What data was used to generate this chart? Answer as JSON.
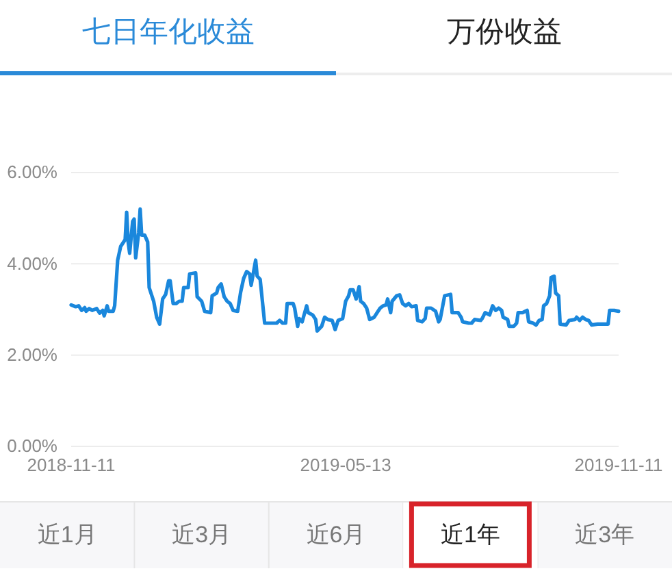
{
  "chart_data": {
    "type": "line",
    "title": "七日年化收益",
    "annotations": [
      "万份收益",
      "近1月",
      "近3月",
      "近6月",
      "近1年",
      "近3年"
    ],
    "x": [
      "2018-11-11",
      "2018-11-14",
      "2018-11-16",
      "2018-11-18",
      "2018-11-20",
      "2018-11-21",
      "2018-11-23",
      "2018-11-25",
      "2018-11-28",
      "2018-11-30",
      "2018-12-02",
      "2018-12-03",
      "2018-12-05",
      "2018-12-06",
      "2018-12-09",
      "2018-12-10",
      "2018-12-12",
      "2018-12-14",
      "2018-12-17",
      "2018-12-18",
      "2018-12-19",
      "2018-12-20",
      "2018-12-22",
      "2018-12-23",
      "2018-12-24",
      "2018-12-26",
      "2018-12-27",
      "2018-12-28",
      "2018-12-30",
      "2019-01-01",
      "2019-01-02",
      "2019-01-05",
      "2019-01-07",
      "2019-01-09",
      "2019-01-11",
      "2019-01-13",
      "2019-01-15",
      "2019-01-16",
      "2019-01-18",
      "2019-01-20",
      "2019-01-22",
      "2019-01-24",
      "2019-01-25",
      "2019-01-28",
      "2019-01-29",
      "2019-02-02",
      "2019-02-03",
      "2019-02-06",
      "2019-02-08",
      "2019-02-12",
      "2019-02-13",
      "2019-02-16",
      "2019-02-17",
      "2019-02-19",
      "2019-02-21",
      "2019-02-23",
      "2019-02-25",
      "2019-02-27",
      "2019-03-02",
      "2019-03-04",
      "2019-03-06",
      "2019-03-08",
      "2019-03-10",
      "2019-03-11",
      "2019-03-14",
      "2019-03-15",
      "2019-03-17",
      "2019-03-20",
      "2019-03-24",
      "2019-03-28",
      "2019-03-30",
      "2019-04-01",
      "2019-04-03",
      "2019-04-04",
      "2019-04-08",
      "2019-04-09",
      "2019-04-11",
      "2019-04-12",
      "2019-04-14",
      "2019-04-17",
      "2019-04-18",
      "2019-04-21",
      "2019-04-23",
      "2019-04-24",
      "2019-04-27",
      "2019-04-29",
      "2019-05-01",
      "2019-05-04",
      "2019-05-06",
      "2019-05-08",
      "2019-05-11",
      "2019-05-13",
      "2019-05-15",
      "2019-05-16",
      "2019-05-18",
      "2019-05-20",
      "2019-05-22",
      "2019-05-23",
      "2019-05-25",
      "2019-05-27",
      "2019-05-29",
      "2019-06-01",
      "2019-06-03",
      "2019-06-05",
      "2019-06-07",
      "2019-06-09",
      "2019-06-10",
      "2019-06-12",
      "2019-06-13",
      "2019-06-16",
      "2019-06-18",
      "2019-06-20",
      "2019-06-22",
      "2019-06-24",
      "2019-06-26",
      "2019-06-29",
      "2019-06-30",
      "2019-07-03",
      "2019-07-05",
      "2019-07-06",
      "2019-07-09",
      "2019-07-12",
      "2019-07-14",
      "2019-07-15",
      "2019-07-18",
      "2019-07-22",
      "2019-07-23",
      "2019-07-27",
      "2019-07-29",
      "2019-07-30",
      "2019-08-03",
      "2019-08-05",
      "2019-08-07",
      "2019-08-11",
      "2019-08-12",
      "2019-08-14",
      "2019-08-17",
      "2019-08-19",
      "2019-08-21",
      "2019-08-23",
      "2019-08-25",
      "2019-08-26",
      "2019-08-29",
      "2019-08-30",
      "2019-09-02",
      "2019-09-04",
      "2019-09-05",
      "2019-09-08",
      "2019-09-11",
      "2019-09-12",
      "2019-09-15",
      "2019-09-17",
      "2019-09-19",
      "2019-09-21",
      "2019-09-22",
      "2019-09-24",
      "2019-09-26",
      "2019-09-27",
      "2019-09-29",
      "2019-09-30",
      "2019-10-02",
      "2019-10-03",
      "2019-10-07",
      "2019-10-09",
      "2019-10-13",
      "2019-10-14",
      "2019-10-16",
      "2019-10-18",
      "2019-10-20",
      "2019-10-22",
      "2019-10-24",
      "2019-10-28",
      "2019-10-31",
      "2019-11-04",
      "2019-11-05",
      "2019-11-08",
      "2019-11-11"
    ],
    "series": [
      {
        "color": "#1a87dc",
        "values": [
          3.1,
          3.06,
          3.08,
          2.98,
          3.04,
          2.96,
          3.02,
          2.98,
          3.02,
          2.92,
          2.98,
          2.86,
          3.08,
          2.96,
          2.96,
          3.08,
          4.08,
          4.38,
          4.53,
          5.13,
          4.48,
          4.23,
          4.93,
          4.98,
          4.13,
          4.68,
          5.2,
          4.63,
          4.63,
          4.48,
          3.48,
          3.18,
          2.83,
          2.68,
          3.23,
          3.33,
          3.63,
          3.63,
          3.13,
          3.13,
          3.18,
          3.18,
          3.48,
          3.48,
          3.78,
          3.8,
          3.28,
          3.18,
          2.96,
          2.93,
          3.3,
          3.36,
          3.48,
          3.56,
          3.28,
          3.18,
          3.13,
          2.98,
          2.96,
          3.38,
          3.68,
          3.83,
          3.78,
          3.53,
          4.08,
          3.73,
          3.66,
          2.7,
          2.7,
          2.7,
          2.76,
          2.7,
          2.7,
          3.13,
          3.13,
          3.03,
          2.63,
          2.8,
          2.73,
          3.08,
          2.93,
          2.88,
          2.78,
          2.53,
          2.63,
          2.83,
          2.78,
          2.76,
          2.56,
          2.76,
          2.8,
          3.18,
          3.3,
          3.43,
          3.43,
          3.23,
          3.5,
          3.18,
          3.13,
          3.03,
          2.78,
          2.83,
          2.93,
          3.03,
          3.08,
          3.1,
          3.23,
          2.93,
          3.18,
          3.3,
          3.32,
          3.13,
          3.08,
          3.13,
          3.06,
          3.08,
          2.76,
          2.73,
          2.8,
          3.03,
          3.03,
          2.96,
          2.73,
          2.78,
          3.3,
          3.33,
          2.93,
          2.93,
          2.83,
          2.73,
          2.7,
          2.7,
          2.78,
          2.76,
          2.8,
          2.93,
          2.88,
          3.08,
          2.98,
          3.03,
          2.98,
          2.83,
          2.78,
          2.63,
          2.63,
          2.7,
          2.93,
          2.93,
          2.98,
          2.73,
          2.7,
          2.66,
          2.76,
          2.78,
          3.08,
          3.13,
          3.3,
          3.7,
          3.73,
          3.36,
          3.3,
          2.68,
          2.66,
          2.76,
          2.78,
          2.83,
          2.76,
          2.83,
          2.78,
          2.76,
          2.66,
          2.68,
          2.68,
          2.68,
          2.98,
          2.98,
          2.96
        ]
      }
    ],
    "xlim": [
      "2018-11-11",
      "2019-11-11"
    ],
    "xticks": [
      "2018-11-11",
      "2019-05-13",
      "2019-11-11"
    ],
    "ylim": [
      0,
      6
    ],
    "yticks": [
      {
        "value": 0,
        "label": "0.00%"
      },
      {
        "value": 2,
        "label": "2.00%"
      },
      {
        "value": 4,
        "label": "4.00%"
      },
      {
        "value": 6,
        "label": "6.00%"
      }
    ],
    "grid": "y",
    "line_style": "solid"
  }
}
